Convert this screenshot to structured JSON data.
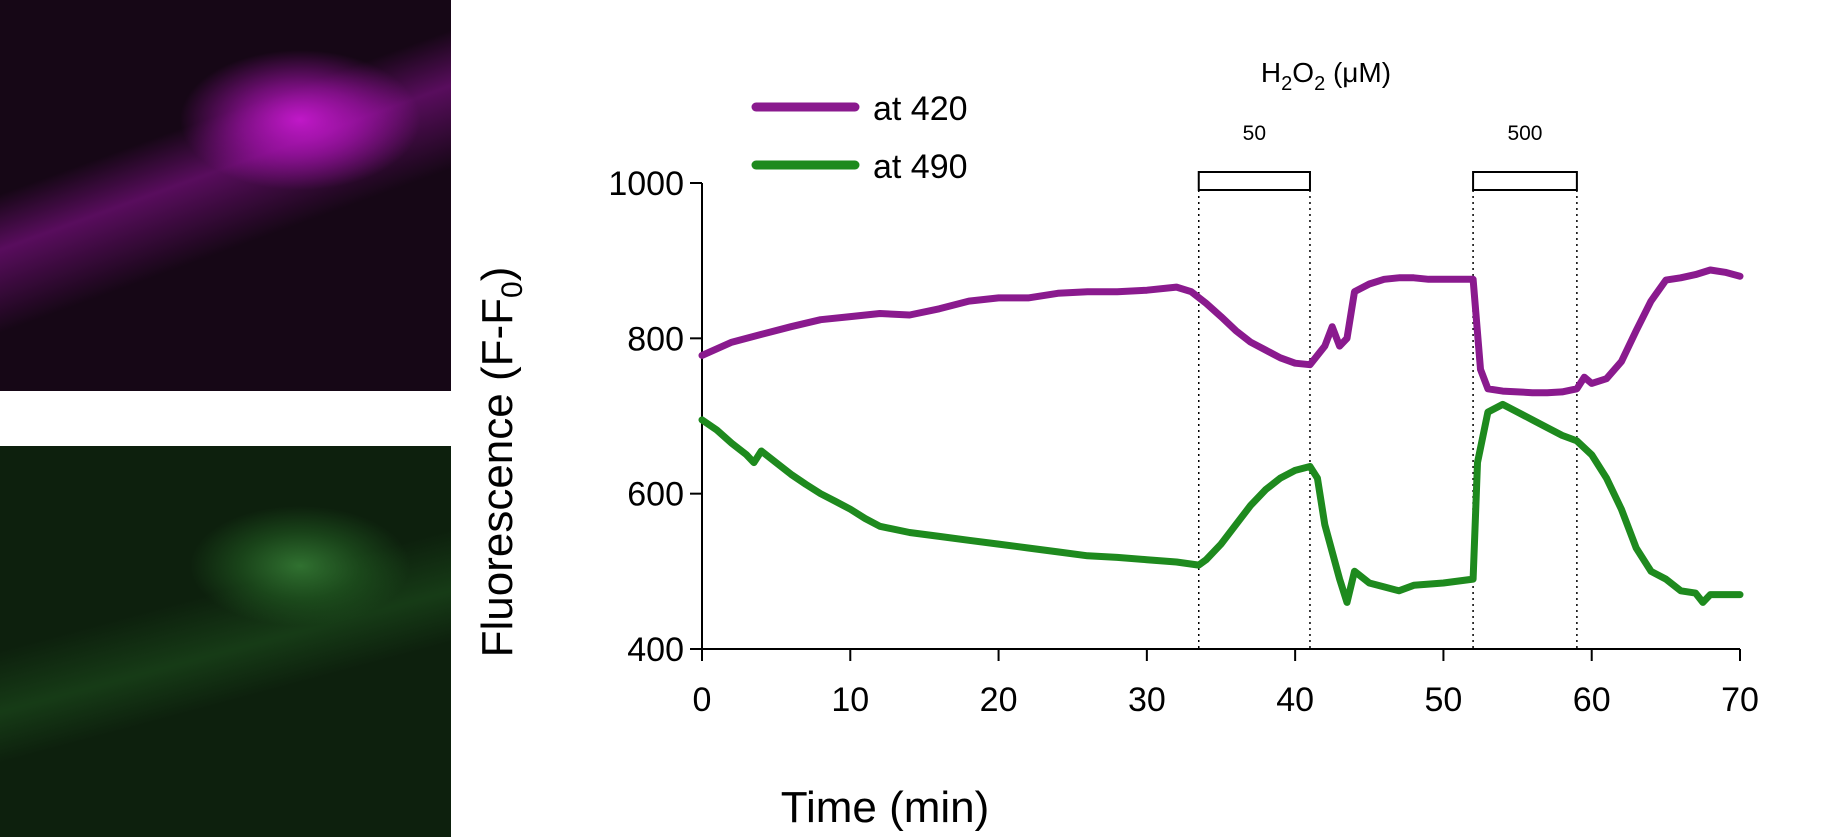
{
  "panels": [
    {
      "channel": "at 420",
      "color": "#c018c8"
    },
    {
      "channel": "at 490",
      "color": "#2a8a2a"
    }
  ],
  "chart_data": {
    "type": "line",
    "xlabel": "Time (min)",
    "ylabel_main": "Fluorescence (F-F",
    "ylabel_sub": "0",
    "ylabel_close": ")",
    "xlim": [
      0,
      70
    ],
    "ylim": [
      400,
      1000
    ],
    "xticks": [
      0,
      10,
      20,
      30,
      40,
      50,
      60,
      70
    ],
    "yticks": [
      400,
      600,
      800,
      1000
    ],
    "grid": false,
    "legend_position": "top-left",
    "treatment_title": {
      "pre": "H",
      "sub1": "2",
      "mid": "O",
      "sub2": "2",
      "post": " (μM)"
    },
    "treatments": [
      {
        "label": "50",
        "start": 33.5,
        "end": 41
      },
      {
        "label": "500",
        "start": 52,
        "end": 59
      }
    ],
    "series": [
      {
        "name": "at 420",
        "color": "#8a1a8e",
        "x": [
          0,
          2,
          4,
          6,
          8,
          10,
          12,
          14,
          16,
          18,
          20,
          22,
          24,
          26,
          28,
          30,
          32,
          33,
          34,
          35,
          36,
          37,
          38,
          39,
          40,
          41,
          42,
          42.5,
          43,
          43.5,
          44,
          45,
          46,
          47,
          48,
          49,
          50,
          51,
          52,
          52.5,
          53,
          54,
          55,
          56,
          57,
          58,
          59,
          59.5,
          60,
          61,
          62,
          63,
          64,
          65,
          66,
          67,
          68,
          69,
          70
        ],
        "y": [
          778,
          795,
          805,
          815,
          824,
          828,
          832,
          830,
          838,
          848,
          852,
          852,
          858,
          860,
          860,
          862,
          866,
          860,
          845,
          828,
          810,
          795,
          785,
          775,
          768,
          766,
          790,
          815,
          790,
          800,
          860,
          870,
          876,
          878,
          878,
          876,
          876,
          876,
          876,
          760,
          735,
          732,
          731,
          730,
          730,
          731,
          735,
          750,
          742,
          748,
          770,
          810,
          848,
          875,
          878,
          882,
          888,
          885,
          880
        ]
      },
      {
        "name": "at 490",
        "color": "#1e8a1e",
        "x": [
          0,
          1,
          2,
          3,
          3.5,
          4,
          5,
          6,
          7,
          8,
          9,
          10,
          11,
          12,
          14,
          16,
          18,
          20,
          22,
          24,
          26,
          28,
          30,
          32,
          33.5,
          34,
          35,
          36,
          37,
          38,
          39,
          40,
          41,
          41.5,
          42,
          43,
          43.5,
          44,
          45,
          46,
          47,
          48,
          50,
          52,
          52.3,
          53,
          54,
          55,
          56,
          57,
          58,
          59,
          60,
          61,
          62,
          63,
          64,
          65,
          66,
          67,
          67.5,
          68,
          69,
          70
        ],
        "y": [
          695,
          682,
          665,
          650,
          640,
          655,
          640,
          625,
          612,
          600,
          590,
          580,
          568,
          558,
          550,
          545,
          540,
          535,
          530,
          525,
          520,
          518,
          515,
          512,
          508,
          515,
          535,
          560,
          585,
          605,
          620,
          630,
          635,
          620,
          560,
          490,
          460,
          500,
          485,
          480,
          475,
          482,
          485,
          490,
          640,
          705,
          715,
          705,
          695,
          685,
          675,
          668,
          650,
          620,
          580,
          530,
          500,
          490,
          475,
          472,
          460,
          470,
          470,
          470
        ]
      }
    ]
  }
}
